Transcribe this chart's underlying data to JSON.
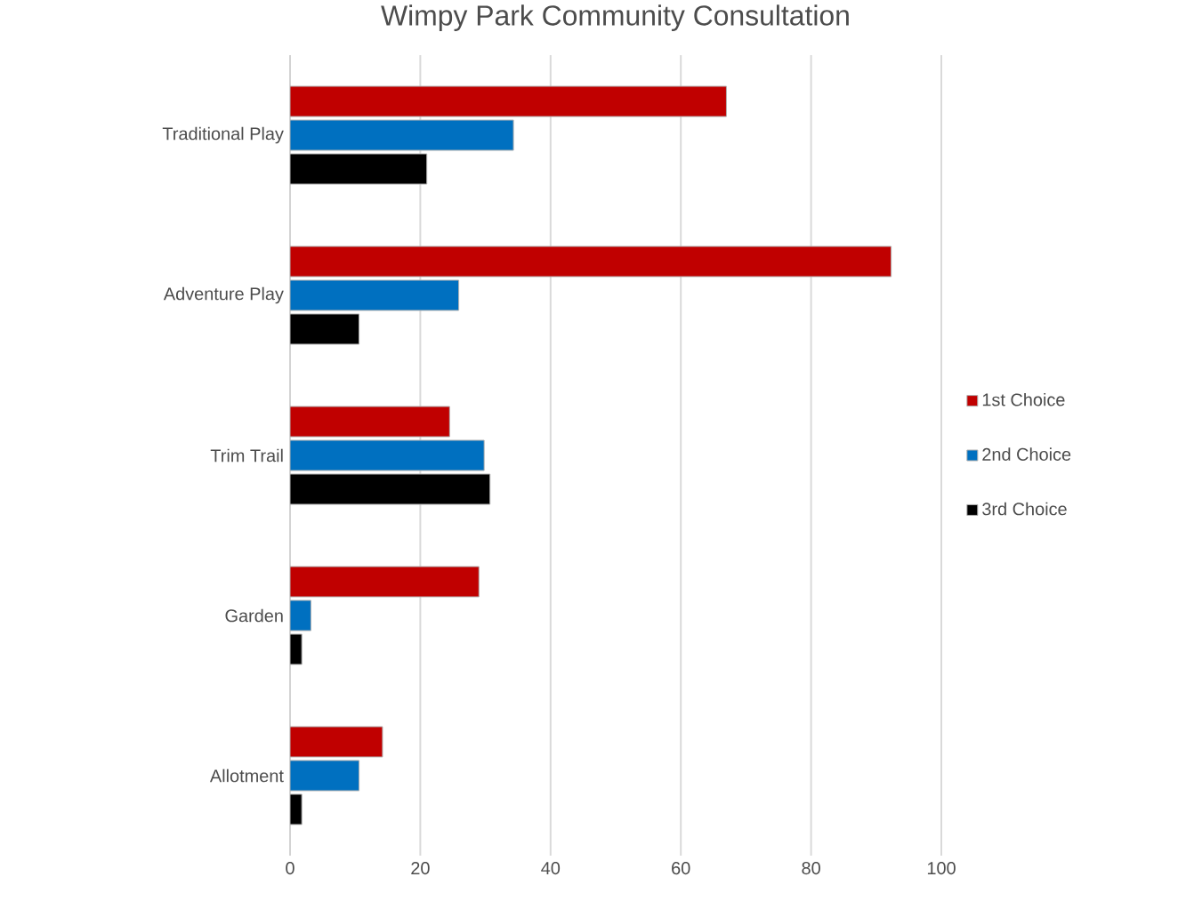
{
  "chart_data": {
    "type": "bar",
    "orientation": "horizontal",
    "title": "Wimpy Park Community Consultation",
    "categories": [
      "Traditional Play",
      "Adventure Play",
      "Trim Trail",
      "Garden",
      "Allotment"
    ],
    "series": [
      {
        "name": "1st Choice",
        "color": "#c00000",
        "values": [
          67,
          92.3,
          24.5,
          29,
          14.2
        ]
      },
      {
        "name": "2nd Choice",
        "color": "#0070c0",
        "values": [
          34.3,
          25.9,
          29.8,
          3.2,
          10.6
        ]
      },
      {
        "name": "3rd Choice",
        "color": "#000000",
        "values": [
          21,
          10.6,
          30.7,
          1.8,
          1.8
        ]
      }
    ],
    "xlim": [
      0,
      100
    ],
    "xticks": [
      0,
      20,
      40,
      60,
      80,
      100
    ],
    "grid": "x",
    "legend": "right"
  }
}
